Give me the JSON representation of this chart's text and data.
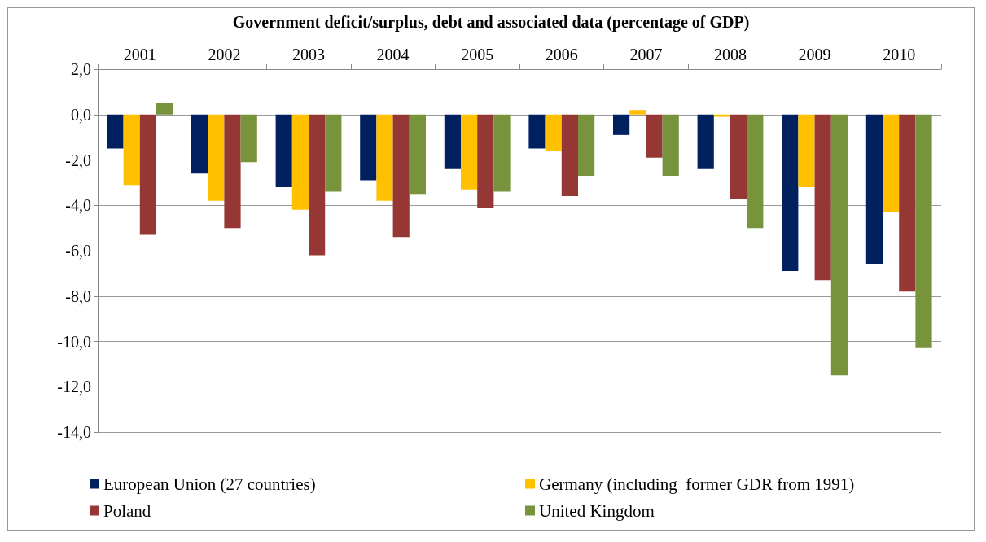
{
  "chart_data": {
    "type": "bar",
    "title": "Government deficit/surplus, debt and associated data (percentage of GDP)",
    "categories": [
      "2001",
      "2002",
      "2003",
      "2004",
      "2005",
      "2006",
      "2007",
      "2008",
      "2009",
      "2010"
    ],
    "series": [
      {
        "name": "European Union (27 countries)",
        "color": "#002060",
        "values": [
          -1.5,
          -2.6,
          -3.2,
          -2.9,
          -2.4,
          -1.5,
          -0.9,
          -2.4,
          -6.9,
          -6.6
        ]
      },
      {
        "name": "Germany (including  former GDR from 1991)",
        "color": "#ffc000",
        "values": [
          -3.1,
          -3.8,
          -4.2,
          -3.8,
          -3.3,
          -1.6,
          0.2,
          -0.1,
          -3.2,
          -4.3
        ]
      },
      {
        "name": "Poland",
        "color": "#953735",
        "values": [
          -5.3,
          -5.0,
          -6.2,
          -5.4,
          -4.1,
          -3.6,
          -1.9,
          -3.7,
          -7.3,
          -7.8
        ]
      },
      {
        "name": "United Kingdom",
        "color": "#77933c",
        "values": [
          0.5,
          -2.1,
          -3.4,
          -3.5,
          -3.4,
          -2.7,
          -2.7,
          -5.0,
          -11.5,
          -10.3
        ]
      }
    ],
    "ylim": [
      -14,
      2
    ],
    "yticks": [
      {
        "value": -14,
        "label": "-14,0"
      },
      {
        "value": -12,
        "label": "-12,0"
      },
      {
        "value": -10,
        "label": "-10,0"
      },
      {
        "value": -8,
        "label": "-8,0"
      },
      {
        "value": -6,
        "label": "-6,0"
      },
      {
        "value": -4,
        "label": "-4,0"
      },
      {
        "value": -2,
        "label": "-2,0"
      },
      {
        "value": 0,
        "label": "0,0"
      },
      {
        "value": 2,
        "label": "2,0"
      }
    ],
    "grid": "y",
    "legend": "bottom"
  }
}
